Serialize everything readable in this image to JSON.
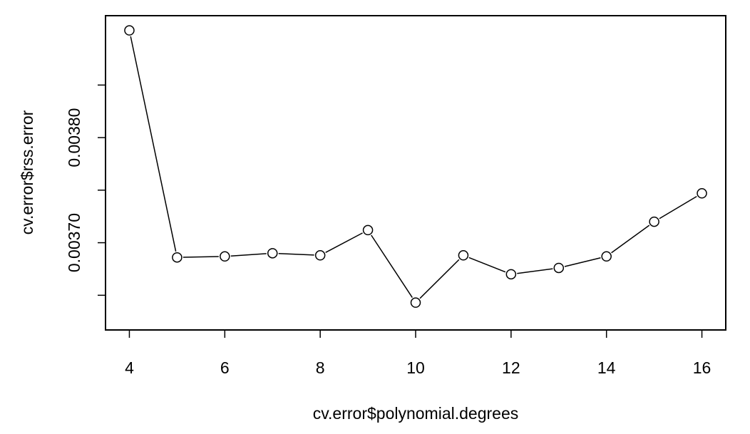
{
  "chart_data": {
    "type": "line",
    "markers": "open-circle",
    "xlabel": "cv.error$polynomial.degrees",
    "ylabel": "cv.error$rss.error",
    "x": [
      4,
      5,
      6,
      7,
      8,
      9,
      10,
      11,
      12,
      13,
      14,
      15,
      16
    ],
    "y": [
      0.003902,
      0.003686,
      0.003687,
      0.00369,
      0.003688,
      0.003712,
      0.003643,
      0.003688,
      0.00367,
      0.003676,
      0.003687,
      0.00372,
      0.003747
    ],
    "xlim": [
      3.5,
      16.5
    ],
    "ylim": [
      0.003617,
      0.003916
    ],
    "xticks": [
      4,
      6,
      8,
      10,
      12,
      14,
      16
    ],
    "xtick_labels": [
      "4",
      "6",
      "8",
      "10",
      "12",
      "14",
      "16"
    ],
    "yticks": [
      0.00365,
      0.0037,
      0.00375,
      0.0038,
      0.00385
    ],
    "ytick_labels": [
      "",
      "0.00370",
      "",
      "0.00380",
      ""
    ],
    "line_color": "#000000",
    "marker_fill": "#ffffff",
    "grid": false,
    "legend": false
  }
}
